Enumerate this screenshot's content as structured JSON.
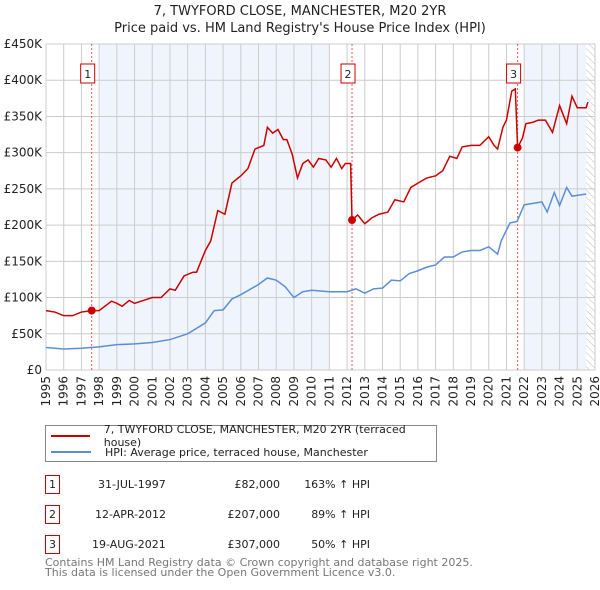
{
  "chart_data": {
    "type": "line",
    "title": "7, TWYFORD CLOSE, MANCHESTER, M20 2YR",
    "subtitle": "Price paid vs. HM Land Registry's House Price Index (HPI)",
    "xlim": [
      1995,
      2026
    ],
    "ylim": [
      0,
      450000
    ],
    "x_ticks": [
      "1995",
      "1996",
      "1997",
      "1998",
      "1999",
      "2000",
      "2001",
      "2002",
      "2003",
      "2004",
      "2005",
      "2006",
      "2007",
      "2008",
      "2009",
      "2010",
      "2011",
      "2012",
      "2013",
      "2014",
      "2015",
      "2016",
      "2017",
      "2018",
      "2019",
      "2020",
      "2021",
      "2022",
      "2023",
      "2024",
      "2025",
      "2026"
    ],
    "y_ticks": [
      {
        "v": 0,
        "label": "£0"
      },
      {
        "v": 50000,
        "label": "£50K"
      },
      {
        "v": 100000,
        "label": "£100K"
      },
      {
        "v": 150000,
        "label": "£150K"
      },
      {
        "v": 200000,
        "label": "£200K"
      },
      {
        "v": 250000,
        "label": "£250K"
      },
      {
        "v": 300000,
        "label": "£300K"
      },
      {
        "v": 350000,
        "label": "£350K"
      },
      {
        "v": 400000,
        "label": "£400K"
      },
      {
        "v": 450000,
        "label": "£450K"
      }
    ],
    "grid": true,
    "series": [
      {
        "name": "7, TWYFORD CLOSE, MANCHESTER, M20 2YR (terraced house)",
        "color": "#cc0000",
        "points": [
          [
            1995,
            82
          ],
          [
            1995.5,
            80
          ],
          [
            1996,
            75
          ],
          [
            1996.5,
            75
          ],
          [
            1997,
            80
          ],
          [
            1997.58,
            82
          ],
          [
            1998,
            82
          ],
          [
            1998.7,
            95
          ],
          [
            1999,
            92
          ],
          [
            1999.3,
            88
          ],
          [
            1999.7,
            96
          ],
          [
            2000,
            92
          ],
          [
            2000.5,
            96
          ],
          [
            2001,
            100
          ],
          [
            2001.5,
            100
          ],
          [
            2002,
            112
          ],
          [
            2002.3,
            110
          ],
          [
            2002.8,
            130
          ],
          [
            2003.3,
            135
          ],
          [
            2003.5,
            135
          ],
          [
            2004,
            165
          ],
          [
            2004.3,
            178
          ],
          [
            2004.7,
            220
          ],
          [
            2005.1,
            215
          ],
          [
            2005.5,
            258
          ],
          [
            2006,
            268
          ],
          [
            2006.4,
            278
          ],
          [
            2006.8,
            305
          ],
          [
            2007.3,
            310
          ],
          [
            2007.5,
            335
          ],
          [
            2007.8,
            327
          ],
          [
            2008.1,
            332
          ],
          [
            2008.4,
            318
          ],
          [
            2008.6,
            318
          ],
          [
            2008.9,
            298
          ],
          [
            2009.2,
            265
          ],
          [
            2009.5,
            285
          ],
          [
            2009.8,
            290
          ],
          [
            2010.1,
            280
          ],
          [
            2010.4,
            292
          ],
          [
            2010.8,
            290
          ],
          [
            2011.1,
            280
          ],
          [
            2011.4,
            292
          ],
          [
            2011.7,
            278
          ],
          [
            2011.9,
            285
          ],
          [
            2012.2,
            285
          ],
          [
            2012.28,
            207
          ],
          [
            2012.6,
            214
          ],
          [
            2013,
            202
          ],
          [
            2013.4,
            210
          ],
          [
            2013.8,
            215
          ],
          [
            2014.3,
            218
          ],
          [
            2014.7,
            235
          ],
          [
            2015.2,
            232
          ],
          [
            2015.6,
            252
          ],
          [
            2016,
            258
          ],
          [
            2016.5,
            265
          ],
          [
            2017,
            268
          ],
          [
            2017.4,
            275
          ],
          [
            2017.8,
            295
          ],
          [
            2018.2,
            292
          ],
          [
            2018.5,
            308
          ],
          [
            2019,
            310
          ],
          [
            2019.5,
            310
          ],
          [
            2020,
            322
          ],
          [
            2020.3,
            310
          ],
          [
            2020.5,
            305
          ],
          [
            2020.8,
            335
          ],
          [
            2021,
            345
          ],
          [
            2021.3,
            385
          ],
          [
            2021.5,
            388
          ],
          [
            2021.63,
            307
          ],
          [
            2021.9,
            320
          ],
          [
            2022.1,
            340
          ],
          [
            2022.5,
            342
          ],
          [
            2022.8,
            345
          ],
          [
            2023.2,
            345
          ],
          [
            2023.6,
            328
          ],
          [
            2024,
            365
          ],
          [
            2024.4,
            340
          ],
          [
            2024.7,
            378
          ],
          [
            2025,
            362
          ],
          [
            2025.5,
            362
          ],
          [
            2025.6,
            370
          ]
        ]
      },
      {
        "name": "HPI: Average price, terraced house, Manchester",
        "color": "#5b8fd4",
        "points": [
          [
            1995,
            31
          ],
          [
            1996,
            29
          ],
          [
            1997,
            30
          ],
          [
            1998,
            32
          ],
          [
            1999,
            35
          ],
          [
            2000,
            36
          ],
          [
            2001,
            38
          ],
          [
            2002,
            42
          ],
          [
            2003,
            50
          ],
          [
            2004,
            65
          ],
          [
            2004.5,
            82
          ],
          [
            2005,
            83
          ],
          [
            2005.5,
            98
          ],
          [
            2006,
            104
          ],
          [
            2007,
            118
          ],
          [
            2007.5,
            127
          ],
          [
            2008,
            124
          ],
          [
            2008.5,
            115
          ],
          [
            2009,
            100
          ],
          [
            2009.5,
            108
          ],
          [
            2010,
            110
          ],
          [
            2011,
            108
          ],
          [
            2011.5,
            108
          ],
          [
            2012,
            108
          ],
          [
            2012.5,
            112
          ],
          [
            2013,
            106
          ],
          [
            2013.5,
            112
          ],
          [
            2014,
            113
          ],
          [
            2014.5,
            124
          ],
          [
            2015,
            123
          ],
          [
            2015.5,
            133
          ],
          [
            2016,
            137
          ],
          [
            2016.5,
            142
          ],
          [
            2017,
            145
          ],
          [
            2017.5,
            156
          ],
          [
            2018,
            156
          ],
          [
            2018.5,
            163
          ],
          [
            2019,
            165
          ],
          [
            2019.5,
            165
          ],
          [
            2020,
            170
          ],
          [
            2020.5,
            160
          ],
          [
            2020.7,
            178
          ],
          [
            2021.2,
            203
          ],
          [
            2021.6,
            205
          ],
          [
            2022,
            228
          ],
          [
            2022.5,
            230
          ],
          [
            2023,
            232
          ],
          [
            2023.3,
            218
          ],
          [
            2023.7,
            245
          ],
          [
            2024,
            227
          ],
          [
            2024.4,
            252
          ],
          [
            2024.7,
            240
          ],
          [
            2025.5,
            243
          ]
        ]
      }
    ],
    "sales": [
      {
        "label": "1",
        "x": 1997.58,
        "price": 82000,
        "date": "31-JUL-1997",
        "price_text": "£82,000",
        "hpi_text": "163% ↑ HPI"
      },
      {
        "label": "2",
        "x": 2012.28,
        "price": 207000,
        "date": "12-APR-2012",
        "price_text": "£207,000",
        "hpi_text": "89% ↑ HPI"
      },
      {
        "label": "3",
        "x": 2021.63,
        "price": 307000,
        "date": "19-AUG-2021",
        "price_text": "£307,000",
        "hpi_text": "50% ↑ HPI"
      }
    ],
    "legend_placement": "below"
  },
  "footer": {
    "line1": "Contains HM Land Registry data © Crown copyright and database right 2025.",
    "line2": "This data is licensed under the Open Government Licence v3.0."
  }
}
